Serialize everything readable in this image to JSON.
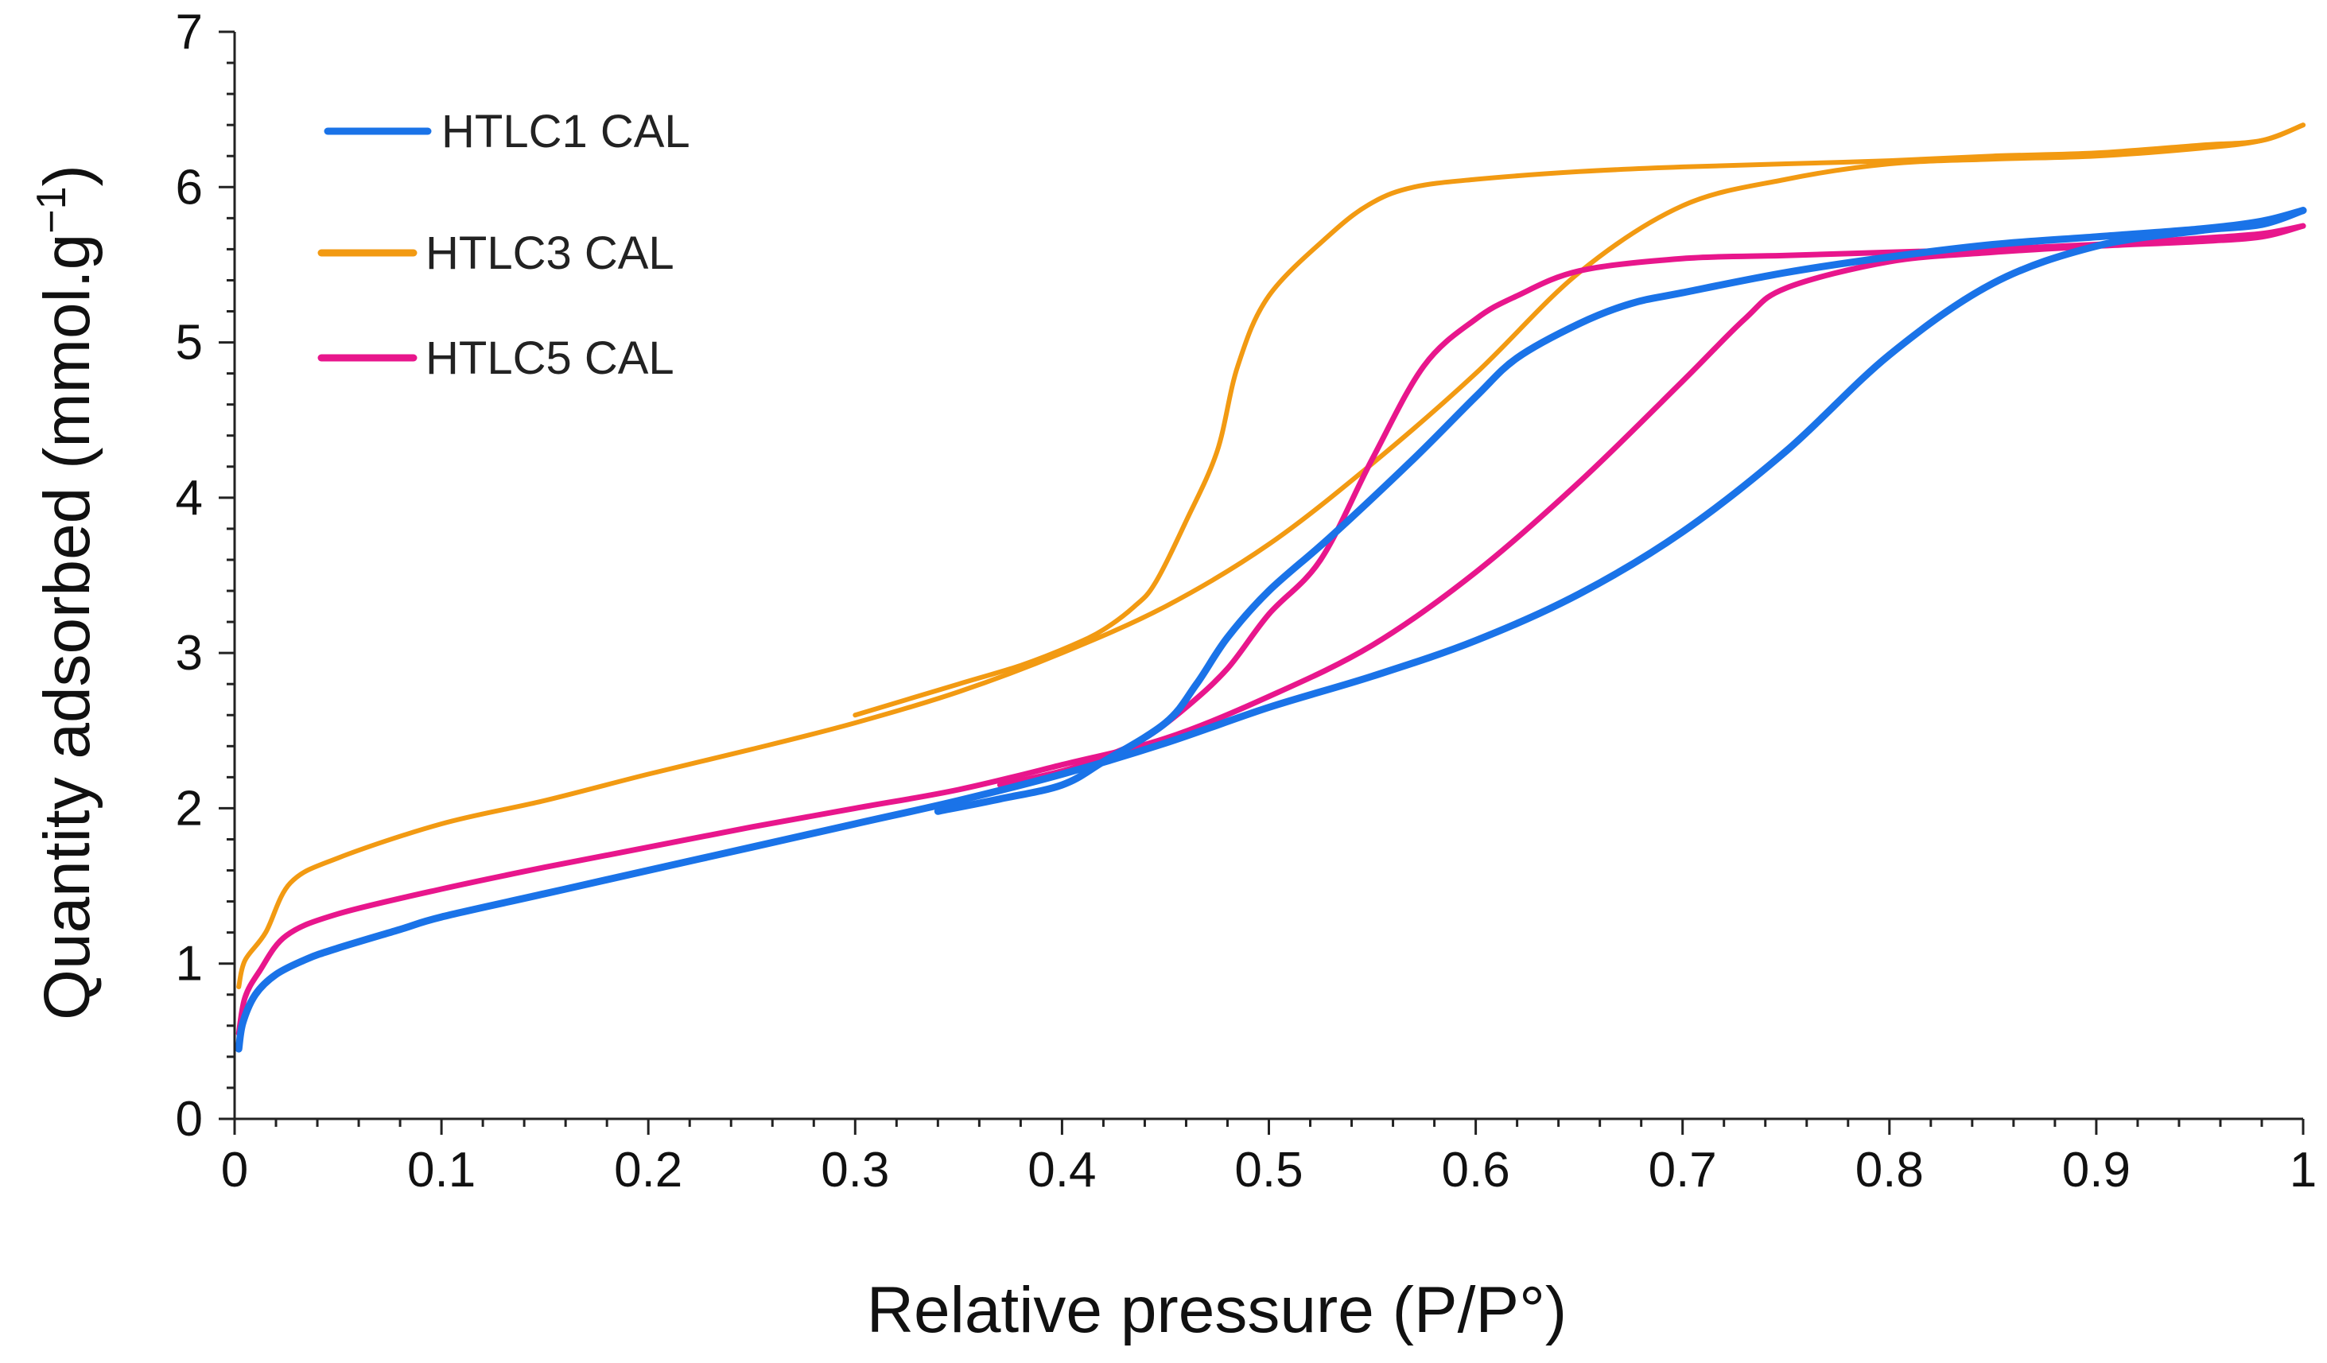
{
  "chart_data": {
    "type": "line",
    "title": "",
    "xlabel": "Relative pressure (P/P°)",
    "ylabel_main": "Quantity adsorbed (mmol.g",
    "ylabel_sup": "−1",
    "ylabel_close": ")",
    "xlim": [
      0,
      1
    ],
    "ylim": [
      0,
      7
    ],
    "xticks": [
      {
        "v": 0,
        "label": "0"
      },
      {
        "v": 0.1,
        "label": "0.1"
      },
      {
        "v": 0.2,
        "label": "0.2"
      },
      {
        "v": 0.3,
        "label": "0.3"
      },
      {
        "v": 0.4,
        "label": "0.4"
      },
      {
        "v": 0.5,
        "label": "0.5"
      },
      {
        "v": 0.6,
        "label": "0.6"
      },
      {
        "v": 0.7,
        "label": "0.7"
      },
      {
        "v": 0.8,
        "label": "0.8"
      },
      {
        "v": 0.9,
        "label": "0.9"
      },
      {
        "v": 1,
        "label": "1"
      }
    ],
    "yticks": [
      {
        "v": 0,
        "label": "0"
      },
      {
        "v": 1,
        "label": "1"
      },
      {
        "v": 2,
        "label": "2"
      },
      {
        "v": 3,
        "label": "3"
      },
      {
        "v": 4,
        "label": "4"
      },
      {
        "v": 5,
        "label": "5"
      },
      {
        "v": 6,
        "label": "6"
      },
      {
        "v": 7,
        "label": "7"
      }
    ],
    "grid": false,
    "legend_position": "top-left",
    "series": [
      {
        "name": "HTLC1 CAL",
        "color": "#1a73e8",
        "adsorption": [
          [
            0.002,
            0.45
          ],
          [
            0.004,
            0.62
          ],
          [
            0.01,
            0.8
          ],
          [
            0.02,
            0.93
          ],
          [
            0.035,
            1.03
          ],
          [
            0.05,
            1.1
          ],
          [
            0.08,
            1.22
          ],
          [
            0.1,
            1.3
          ],
          [
            0.15,
            1.45
          ],
          [
            0.2,
            1.6
          ],
          [
            0.25,
            1.75
          ],
          [
            0.3,
            1.9
          ],
          [
            0.35,
            2.05
          ],
          [
            0.4,
            2.22
          ],
          [
            0.45,
            2.42
          ],
          [
            0.5,
            2.65
          ],
          [
            0.55,
            2.85
          ],
          [
            0.6,
            3.08
          ],
          [
            0.65,
            3.38
          ],
          [
            0.7,
            3.78
          ],
          [
            0.75,
            4.3
          ],
          [
            0.8,
            4.92
          ],
          [
            0.85,
            5.38
          ],
          [
            0.9,
            5.62
          ],
          [
            0.95,
            5.72
          ],
          [
            0.98,
            5.76
          ],
          [
            1.0,
            5.85
          ]
        ],
        "desorption": [
          [
            1.0,
            5.85
          ],
          [
            0.98,
            5.78
          ],
          [
            0.95,
            5.73
          ],
          [
            0.9,
            5.68
          ],
          [
            0.85,
            5.63
          ],
          [
            0.8,
            5.55
          ],
          [
            0.75,
            5.45
          ],
          [
            0.7,
            5.32
          ],
          [
            0.675,
            5.25
          ],
          [
            0.65,
            5.12
          ],
          [
            0.62,
            4.9
          ],
          [
            0.6,
            4.65
          ],
          [
            0.57,
            4.25
          ],
          [
            0.53,
            3.75
          ],
          [
            0.5,
            3.4
          ],
          [
            0.48,
            3.1
          ],
          [
            0.465,
            2.8
          ],
          [
            0.45,
            2.55
          ],
          [
            0.42,
            2.3
          ],
          [
            0.4,
            2.15
          ],
          [
            0.37,
            2.06
          ],
          [
            0.34,
            1.98
          ]
        ]
      },
      {
        "name": "HTLC3 CAL",
        "color": "#f29a12",
        "adsorption": [
          [
            0.002,
            0.85
          ],
          [
            0.005,
            1.02
          ],
          [
            0.015,
            1.2
          ],
          [
            0.027,
            1.52
          ],
          [
            0.05,
            1.68
          ],
          [
            0.1,
            1.9
          ],
          [
            0.15,
            2.05
          ],
          [
            0.2,
            2.22
          ],
          [
            0.25,
            2.38
          ],
          [
            0.3,
            2.55
          ],
          [
            0.35,
            2.75
          ],
          [
            0.4,
            3.0
          ],
          [
            0.45,
            3.3
          ],
          [
            0.5,
            3.7
          ],
          [
            0.55,
            4.22
          ],
          [
            0.6,
            4.8
          ],
          [
            0.65,
            5.45
          ],
          [
            0.7,
            5.88
          ],
          [
            0.75,
            6.05
          ],
          [
            0.8,
            6.15
          ],
          [
            0.85,
            6.18
          ],
          [
            0.9,
            6.2
          ],
          [
            0.95,
            6.25
          ],
          [
            0.98,
            6.3
          ],
          [
            1.0,
            6.4
          ]
        ],
        "desorption": [
          [
            1.0,
            6.4
          ],
          [
            0.98,
            6.3
          ],
          [
            0.95,
            6.27
          ],
          [
            0.9,
            6.22
          ],
          [
            0.85,
            6.2
          ],
          [
            0.8,
            6.17
          ],
          [
            0.75,
            6.15
          ],
          [
            0.7,
            6.13
          ],
          [
            0.65,
            6.1
          ],
          [
            0.6,
            6.05
          ],
          [
            0.57,
            6.0
          ],
          [
            0.55,
            5.9
          ],
          [
            0.53,
            5.7
          ],
          [
            0.5,
            5.3
          ],
          [
            0.485,
            4.85
          ],
          [
            0.475,
            4.3
          ],
          [
            0.46,
            3.85
          ],
          [
            0.445,
            3.45
          ],
          [
            0.435,
            3.3
          ],
          [
            0.42,
            3.15
          ],
          [
            0.405,
            3.05
          ],
          [
            0.38,
            2.92
          ],
          [
            0.35,
            2.8
          ],
          [
            0.3,
            2.6
          ]
        ]
      },
      {
        "name": "HTLC5 CAL",
        "color": "#e8168c",
        "adsorption": [
          [
            0.002,
            0.55
          ],
          [
            0.005,
            0.78
          ],
          [
            0.012,
            0.95
          ],
          [
            0.025,
            1.18
          ],
          [
            0.05,
            1.32
          ],
          [
            0.1,
            1.48
          ],
          [
            0.15,
            1.62
          ],
          [
            0.2,
            1.75
          ],
          [
            0.25,
            1.88
          ],
          [
            0.3,
            2.0
          ],
          [
            0.35,
            2.12
          ],
          [
            0.4,
            2.28
          ],
          [
            0.45,
            2.45
          ],
          [
            0.5,
            2.72
          ],
          [
            0.55,
            3.05
          ],
          [
            0.6,
            3.52
          ],
          [
            0.65,
            4.1
          ],
          [
            0.7,
            4.75
          ],
          [
            0.73,
            5.15
          ],
          [
            0.75,
            5.35
          ],
          [
            0.8,
            5.52
          ],
          [
            0.85,
            5.58
          ],
          [
            0.9,
            5.62
          ],
          [
            0.95,
            5.65
          ],
          [
            0.98,
            5.68
          ],
          [
            1.0,
            5.75
          ]
        ],
        "desorption": [
          [
            1.0,
            5.75
          ],
          [
            0.98,
            5.7
          ],
          [
            0.95,
            5.67
          ],
          [
            0.9,
            5.63
          ],
          [
            0.85,
            5.6
          ],
          [
            0.8,
            5.58
          ],
          [
            0.75,
            5.56
          ],
          [
            0.7,
            5.54
          ],
          [
            0.65,
            5.46
          ],
          [
            0.62,
            5.3
          ],
          [
            0.6,
            5.15
          ],
          [
            0.575,
            4.85
          ],
          [
            0.55,
            4.25
          ],
          [
            0.525,
            3.6
          ],
          [
            0.5,
            3.25
          ],
          [
            0.48,
            2.9
          ],
          [
            0.46,
            2.65
          ],
          [
            0.44,
            2.45
          ],
          [
            0.42,
            2.33
          ],
          [
            0.4,
            2.24
          ],
          [
            0.37,
            2.15
          ]
        ]
      }
    ]
  }
}
